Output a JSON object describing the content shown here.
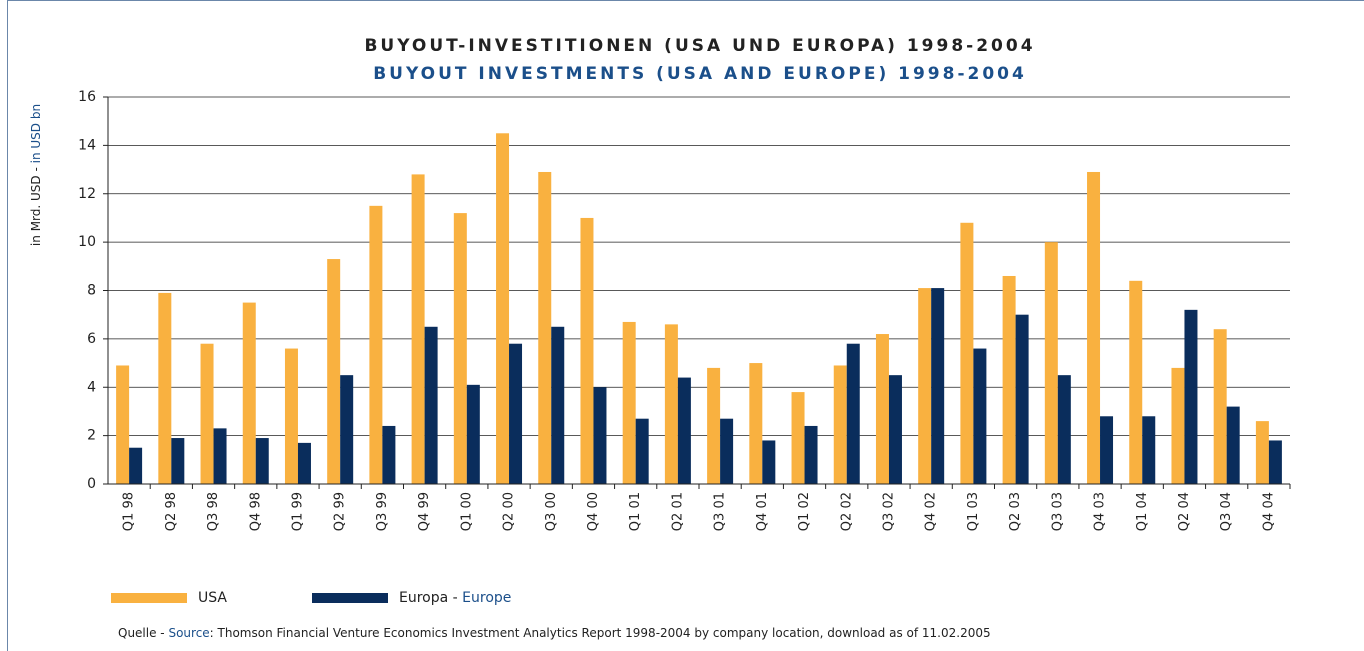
{
  "chart_data": {
    "type": "bar",
    "title": "BUYOUT-INVESTITIONEN (USA UND EUROPA) 1998-2004",
    "subtitle": "BUYOUT INVESTMENTS (USA AND EUROPE) 1998-2004",
    "y_label": [
      "in Mrd. USD - ",
      "in USD bn"
    ],
    "categories": [
      "Q1 98",
      "Q2 98",
      "Q3 98",
      "Q4 98",
      "Q1 99",
      "Q2 99",
      "Q3 99",
      "Q4 99",
      "Q1 00",
      "Q2 00",
      "Q3 00",
      "Q4 00",
      "Q1 01",
      "Q2 01",
      "Q3 01",
      "Q4 01",
      "Q1 02",
      "Q2 02",
      "Q3 02",
      "Q4 02",
      "Q1 03",
      "Q2 03",
      "Q3 03",
      "Q4 03",
      "Q1 04",
      "Q2 04",
      "Q3 04",
      "Q4 04"
    ],
    "series": [
      {
        "name": "USA",
        "color": "#f9b140",
        "values": [
          4.9,
          7.9,
          5.8,
          7.5,
          5.6,
          9.3,
          11.5,
          12.8,
          11.2,
          14.5,
          12.9,
          11.0,
          6.7,
          6.6,
          4.8,
          5.0,
          3.8,
          4.9,
          6.2,
          8.1,
          10.8,
          8.6,
          10.0,
          12.9,
          8.4,
          4.8,
          6.4,
          2.6
        ]
      },
      {
        "name": [
          "Europa - ",
          "Europe"
        ],
        "color": "#0a2d5c",
        "values": [
          1.5,
          1.9,
          2.3,
          1.9,
          1.7,
          4.5,
          2.4,
          6.5,
          4.1,
          5.8,
          6.5,
          4.0,
          2.7,
          4.4,
          2.7,
          1.8,
          2.4,
          5.8,
          4.5,
          8.1,
          5.6,
          7.0,
          4.5,
          2.8,
          2.8,
          7.2,
          3.2,
          1.8
        ]
      }
    ],
    "ylim": [
      0,
      16
    ],
    "yticks": [
      0,
      2,
      4,
      6,
      8,
      10,
      12,
      14,
      16
    ],
    "grid": true,
    "legend": "bottom",
    "source": [
      "Quelle - ",
      "Source",
      ": Thomson Financial Venture Economics Investment Analytics Report 1998-2004 by company location, download as of 11.02.2005"
    ]
  }
}
